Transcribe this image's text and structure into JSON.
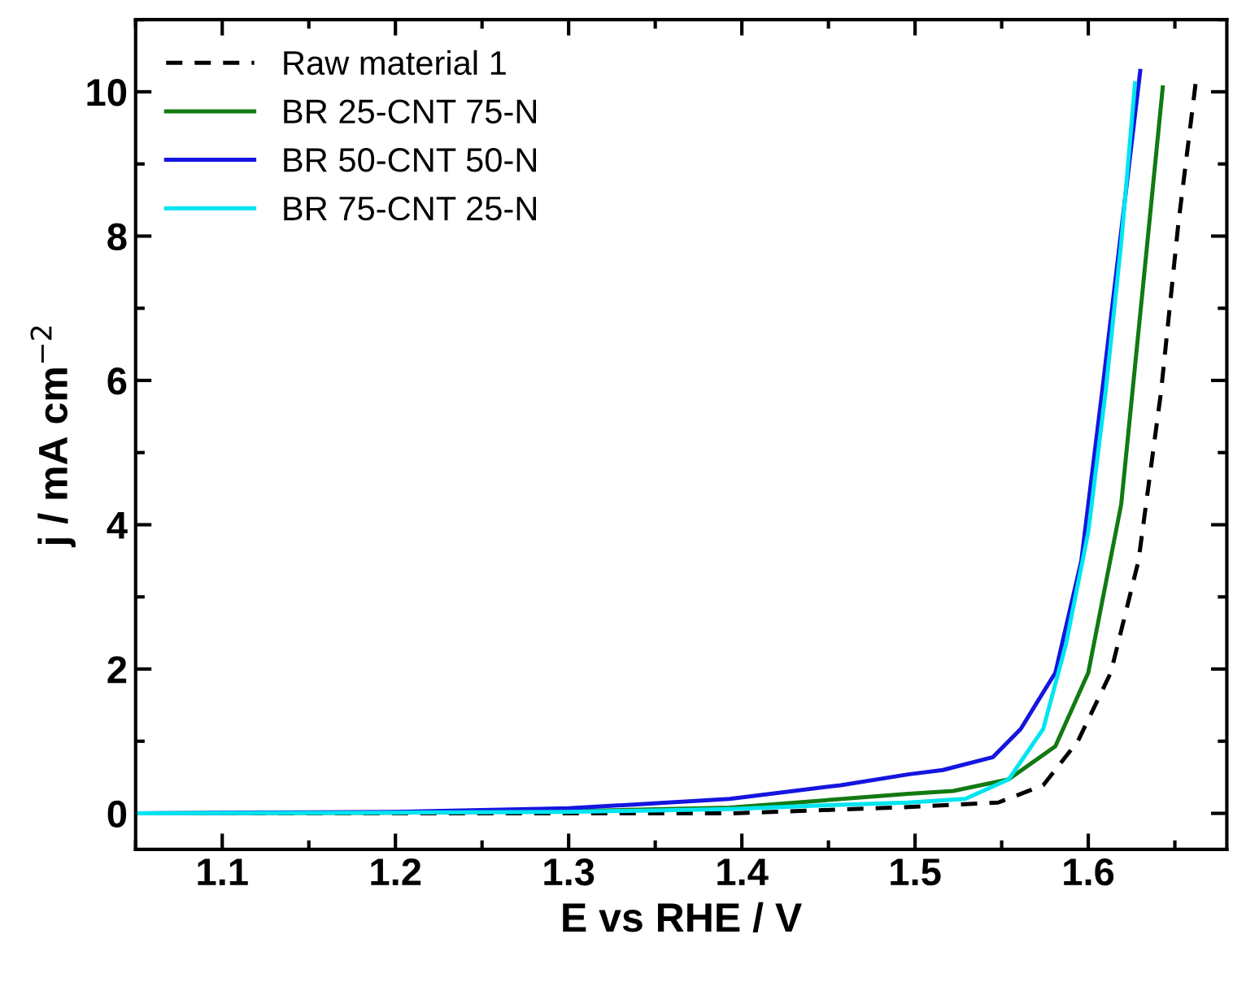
{
  "chart_data": {
    "type": "line",
    "xlabel": "E vs RHE / V",
    "ylabel": "j / mA cm$^{−2}$",
    "xlim": [
      1.05,
      1.68
    ],
    "ylim": [
      -0.5,
      11
    ],
    "xticks": [
      1.1,
      1.2,
      1.3,
      1.4,
      1.5,
      1.6
    ],
    "yticks": [
      0,
      2,
      4,
      6,
      8,
      10
    ],
    "grid": false,
    "legend": "top left",
    "marker": "none",
    "series": [
      {
        "name": "Raw material 1",
        "color": "#000000",
        "line_style": "dashed",
        "x": [
          1.05,
          1.2,
          1.3,
          1.393,
          1.489,
          1.548,
          1.574,
          1.594,
          1.613,
          1.629,
          1.642,
          1.652,
          1.662
        ],
        "values": [
          0,
          0,
          0,
          0.0,
          0.08,
          0.15,
          0.39,
          1.0,
          1.95,
          3.5,
          5.84,
          8.17,
          10.12
        ]
      },
      {
        "name": "BR 25-CNT 75-N",
        "color": "#127a12",
        "line_style": "solid",
        "x": [
          1.05,
          1.2,
          1.3,
          1.393,
          1.496,
          1.522,
          1.554,
          1.581,
          1.6,
          1.619,
          1.632,
          1.643
        ],
        "values": [
          0,
          0.01,
          0.03,
          0.08,
          0.27,
          0.31,
          0.47,
          0.93,
          1.95,
          4.28,
          7.4,
          10.06
        ]
      },
      {
        "name": "BR 50-CNT 50-N",
        "color": "#1515e0",
        "line_style": "solid",
        "x": [
          1.05,
          1.2,
          1.3,
          1.393,
          1.457,
          1.496,
          1.516,
          1.545,
          1.561,
          1.581,
          1.596,
          1.608,
          1.63
        ],
        "values": [
          0,
          0.02,
          0.07,
          0.2,
          0.39,
          0.54,
          0.6,
          0.78,
          1.17,
          1.95,
          3.5,
          5.84,
          10.29
        ]
      },
      {
        "name": "BR 75-CNT 25-N",
        "color": "#00e5f0",
        "line_style": "solid",
        "x": [
          1.05,
          1.2,
          1.3,
          1.393,
          1.457,
          1.496,
          1.529,
          1.554,
          1.574,
          1.587,
          1.6,
          1.61,
          1.619,
          1.627
        ],
        "values": [
          0,
          0.01,
          0.02,
          0.06,
          0.12,
          0.15,
          0.2,
          0.47,
          1.17,
          2.33,
          3.9,
          5.84,
          7.9,
          10.12
        ]
      }
    ]
  }
}
